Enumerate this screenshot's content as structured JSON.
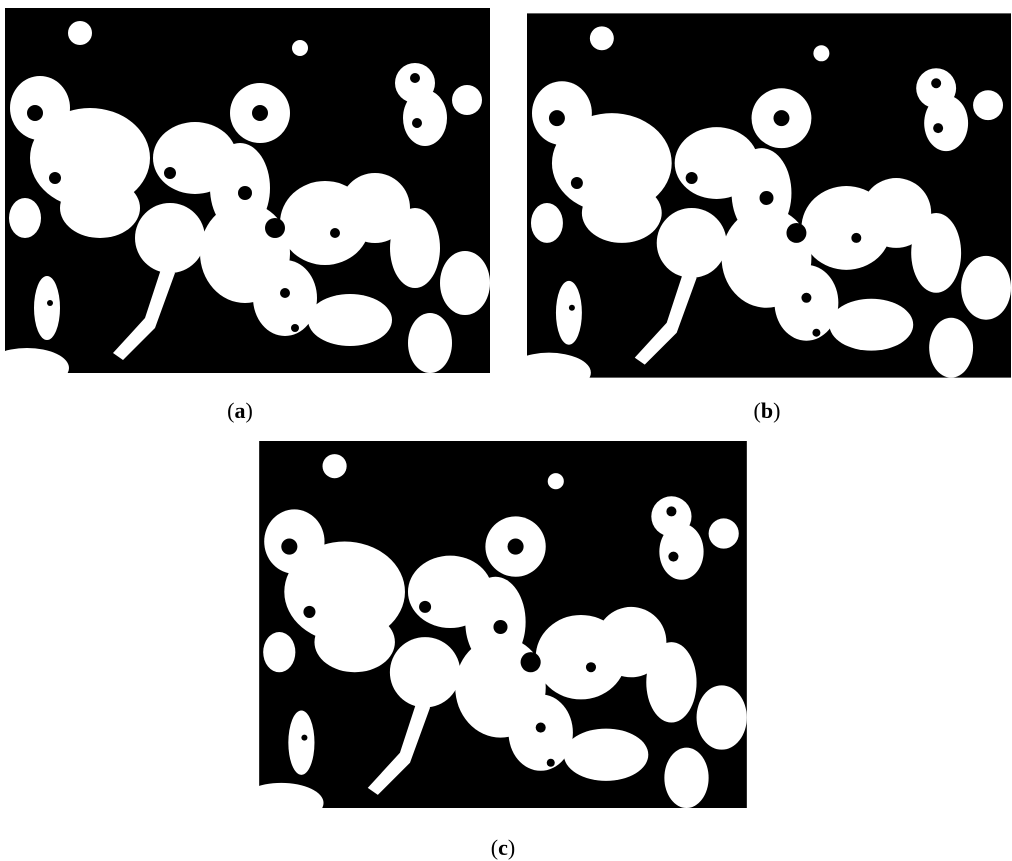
{
  "panels": [
    {
      "open": "(",
      "letter": "a",
      "close": ")"
    },
    {
      "open": "(",
      "letter": "b",
      "close": ")"
    },
    {
      "open": "(",
      "letter": "c",
      "close": ")"
    }
  ]
}
